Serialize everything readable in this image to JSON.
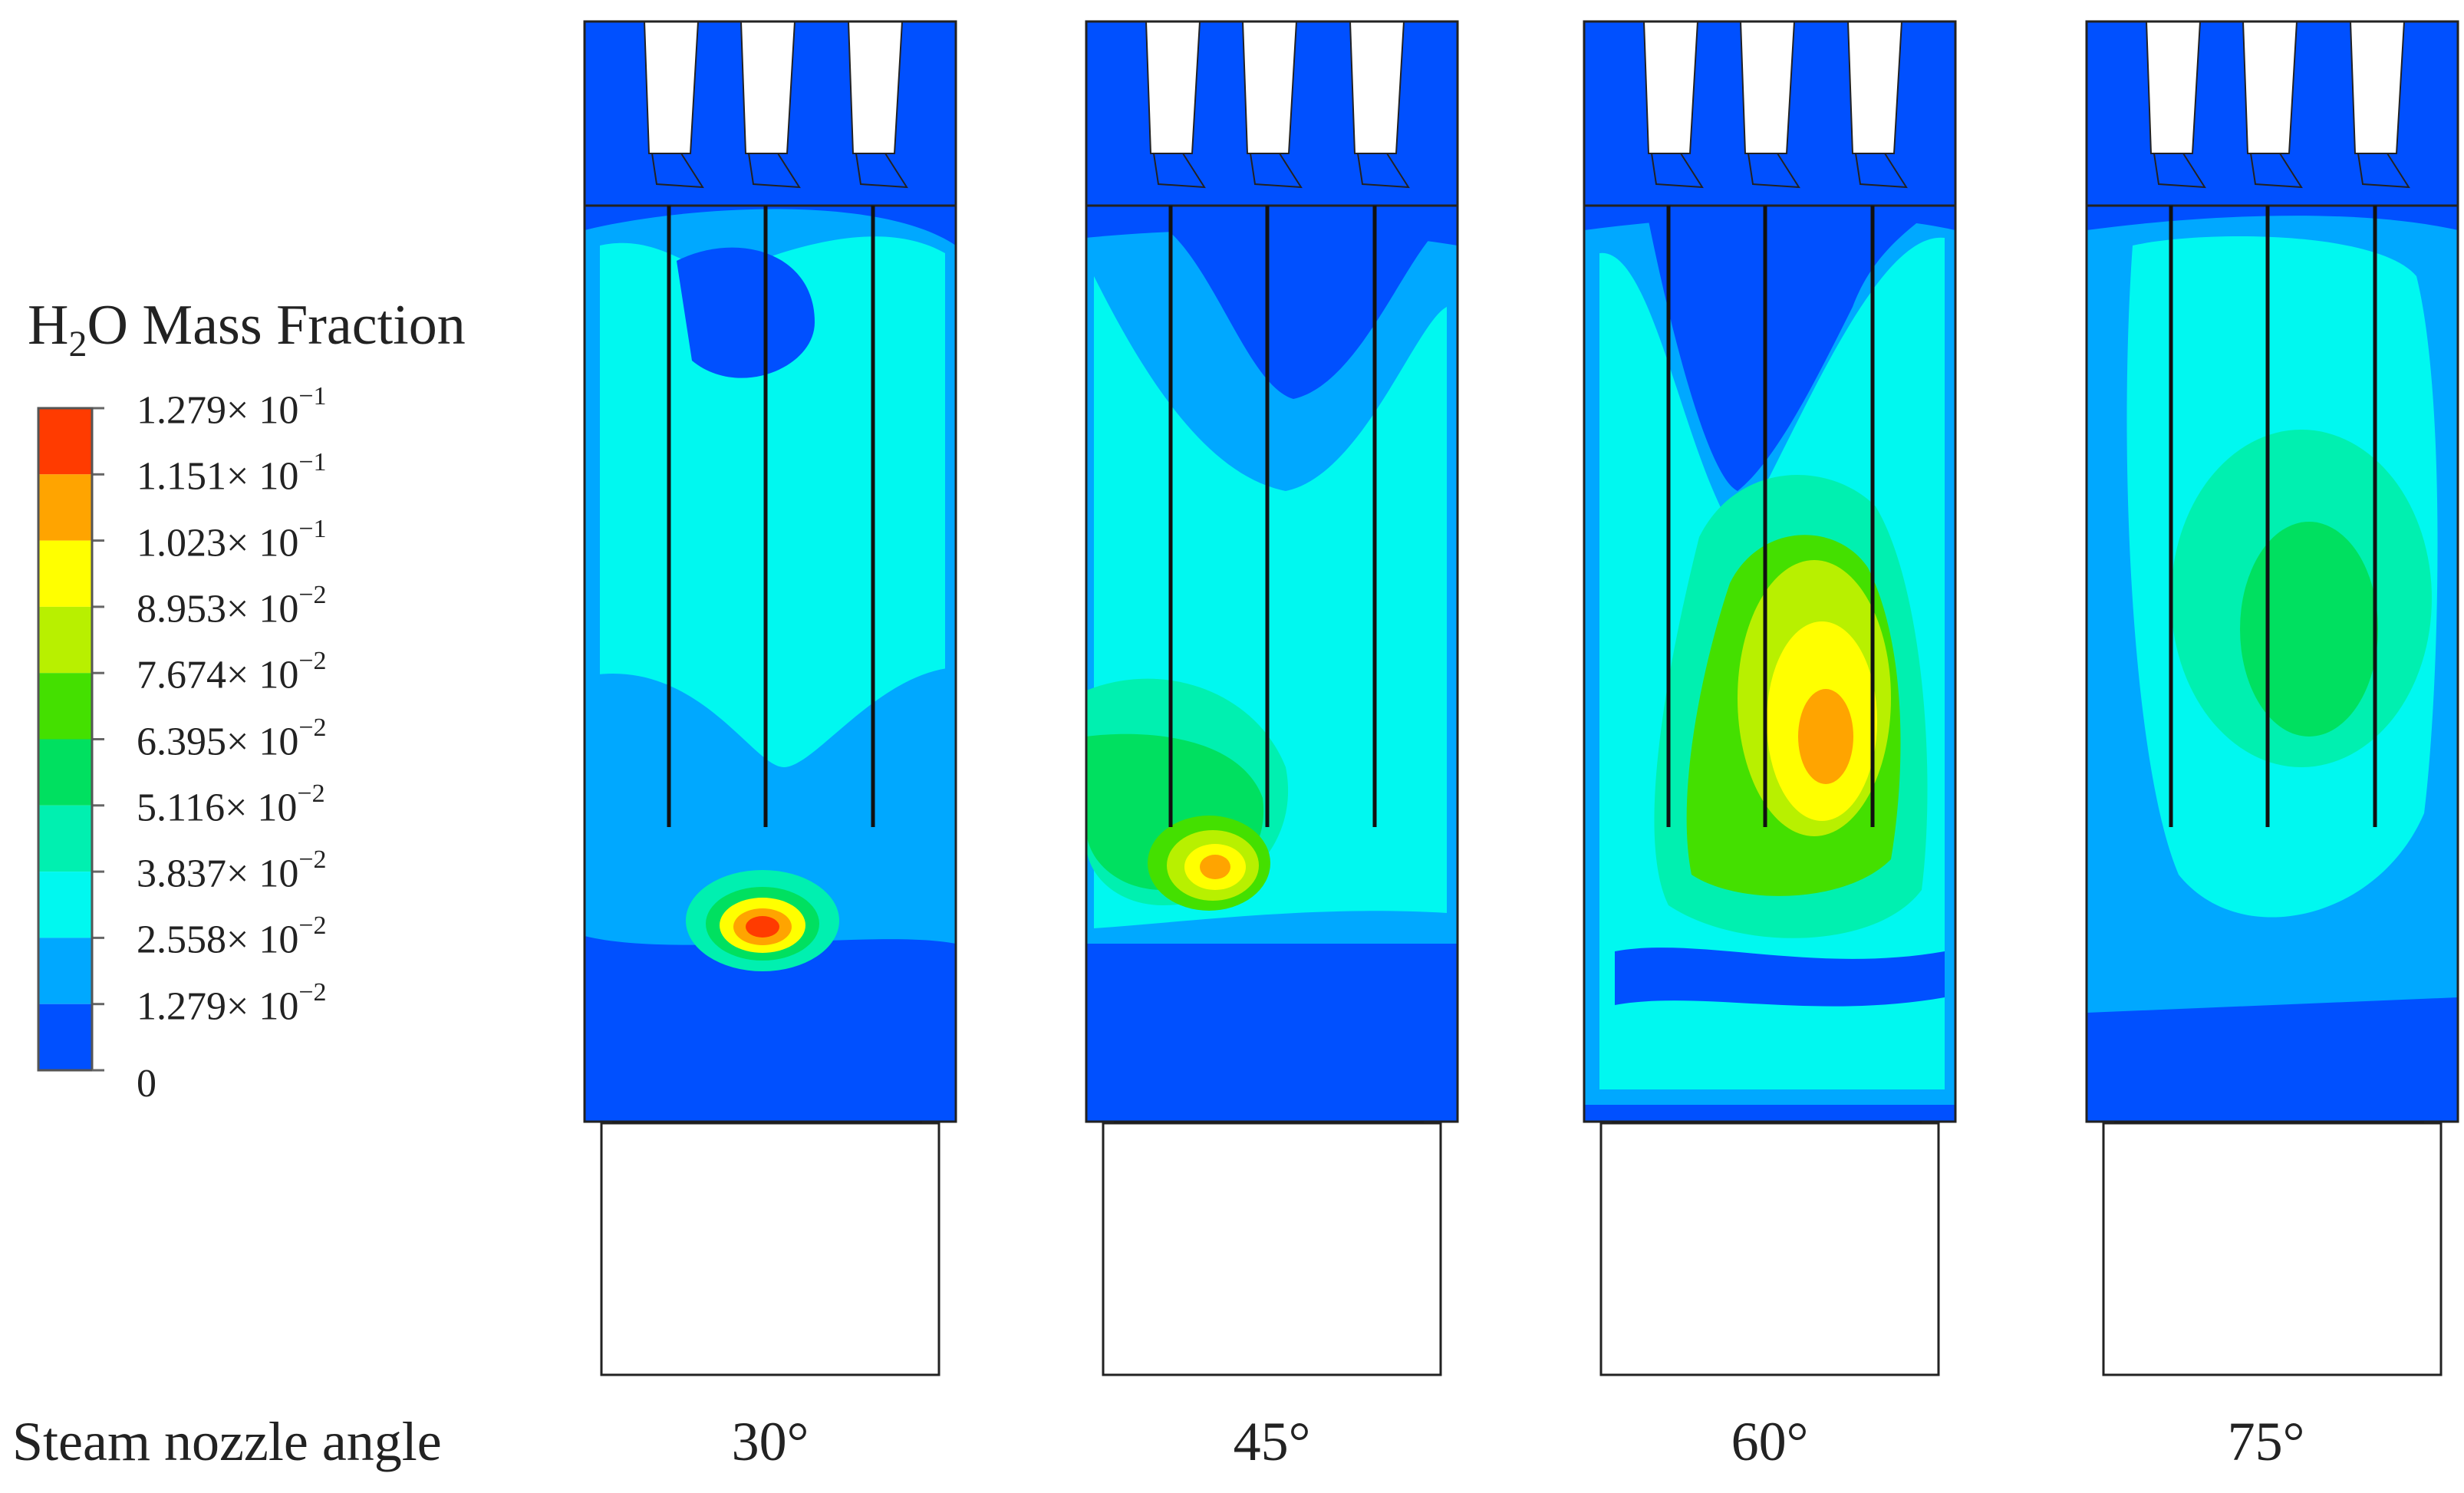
{
  "legend": {
    "title_prefix": "H",
    "title_sub": "2",
    "title_suffix": "O Mass Fraction",
    "levels": [
      {
        "mantissa": "1.279",
        "exponent": "−1",
        "color": "#ff3b00"
      },
      {
        "mantissa": "1.151",
        "exponent": "−1",
        "color": "#ffa400"
      },
      {
        "mantissa": "1.023",
        "exponent": "−1",
        "color": "#ffff00"
      },
      {
        "mantissa": "8.953",
        "exponent": "−2",
        "color": "#b8f000"
      },
      {
        "mantissa": "7.674",
        "exponent": "−2",
        "color": "#44e000"
      },
      {
        "mantissa": "6.395",
        "exponent": "−2",
        "color": "#00e060"
      },
      {
        "mantissa": "5.116",
        "exponent": "−2",
        "color": "#00f0b0"
      },
      {
        "mantissa": "3.837",
        "exponent": "−2",
        "color": "#00f8f0"
      },
      {
        "mantissa": "2.558",
        "exponent": "−2",
        "color": "#00a8ff"
      },
      {
        "mantissa": "1.279",
        "exponent": "−2",
        "color": "#0050ff"
      }
    ],
    "zero_label": "0"
  },
  "row_label": "Steam nozzle angle",
  "panels": [
    {
      "angle": "30°",
      "plume_level": 1.0
    },
    {
      "angle": "45°",
      "plume_level": 0.85
    },
    {
      "angle": "60°",
      "plume_level": 0.9
    },
    {
      "angle": "75°",
      "plume_level": 0.55
    }
  ],
  "colors": {
    "background_blue": "#0050ff",
    "light_blue": "#00a8ff",
    "cyan": "#00f8f0",
    "aqua": "#00f0b0",
    "green": "#00e060",
    "lime": "#44e000",
    "yellow_green": "#b8f000",
    "yellow": "#ffff00",
    "orange": "#ffa400",
    "red": "#ff3b00"
  }
}
